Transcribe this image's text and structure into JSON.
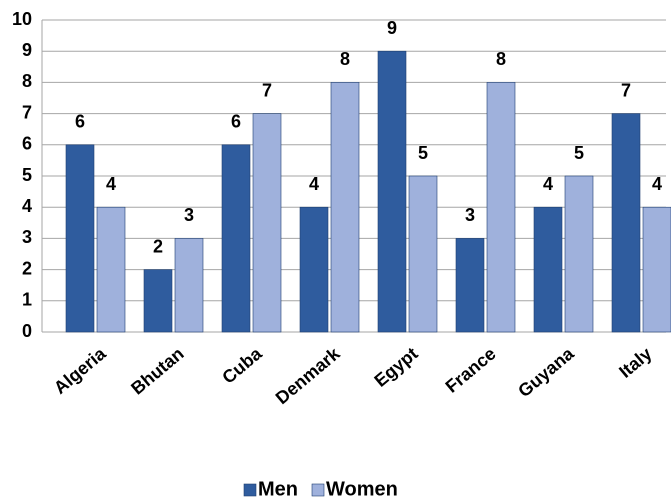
{
  "chart_data": {
    "type": "bar",
    "categories": [
      "Algeria",
      "Bhutan",
      "Cuba",
      "Denmark",
      "Egypt",
      "France",
      "Guyana",
      "Italy"
    ],
    "series": [
      {
        "name": "Men",
        "color": "#2f5c9e",
        "values": [
          6,
          2,
          6,
          4,
          9,
          3,
          4,
          7
        ]
      },
      {
        "name": "Women",
        "color": "#9fb1dc",
        "values": [
          4,
          3,
          7,
          8,
          5,
          8,
          5,
          4
        ]
      }
    ],
    "ylim": [
      0,
      10
    ],
    "yticks": [
      0,
      1,
      2,
      3,
      4,
      5,
      6,
      7,
      8,
      9,
      10
    ],
    "grid": true,
    "legend": "bottom"
  }
}
